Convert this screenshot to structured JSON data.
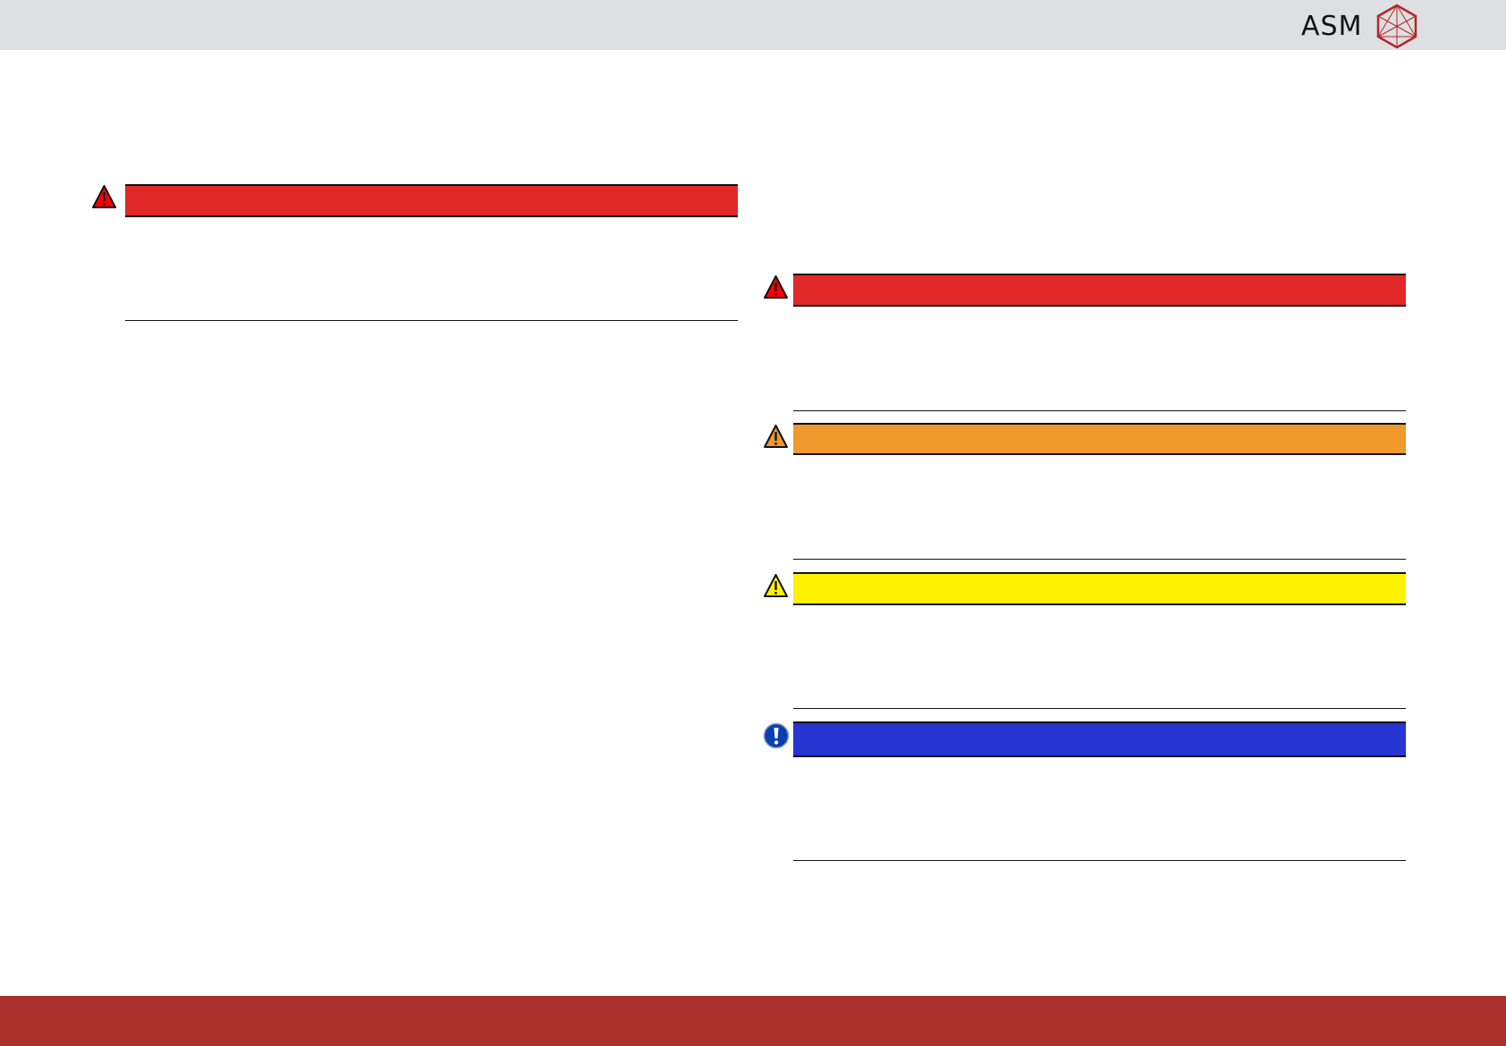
{
  "header": {
    "logo_text": "ASM",
    "background": "#dedfe1",
    "logo_color": "#b3262b"
  },
  "footer": {
    "background": "#aa302e"
  },
  "left_column": {
    "notices": [
      {
        "level": "danger",
        "icon": "warning-triangle-icon",
        "color": "#e22828"
      }
    ]
  },
  "right_column": {
    "notices": [
      {
        "level": "danger",
        "icon": "warning-triangle-icon",
        "color": "#e22828"
      },
      {
        "level": "warning",
        "icon": "warning-triangle-icon",
        "color": "#f0992c"
      },
      {
        "level": "caution",
        "icon": "warning-triangle-icon",
        "color": "#fff200"
      },
      {
        "level": "notice",
        "icon": "exclamation-circle-icon",
        "color": "#2634d2"
      }
    ]
  }
}
